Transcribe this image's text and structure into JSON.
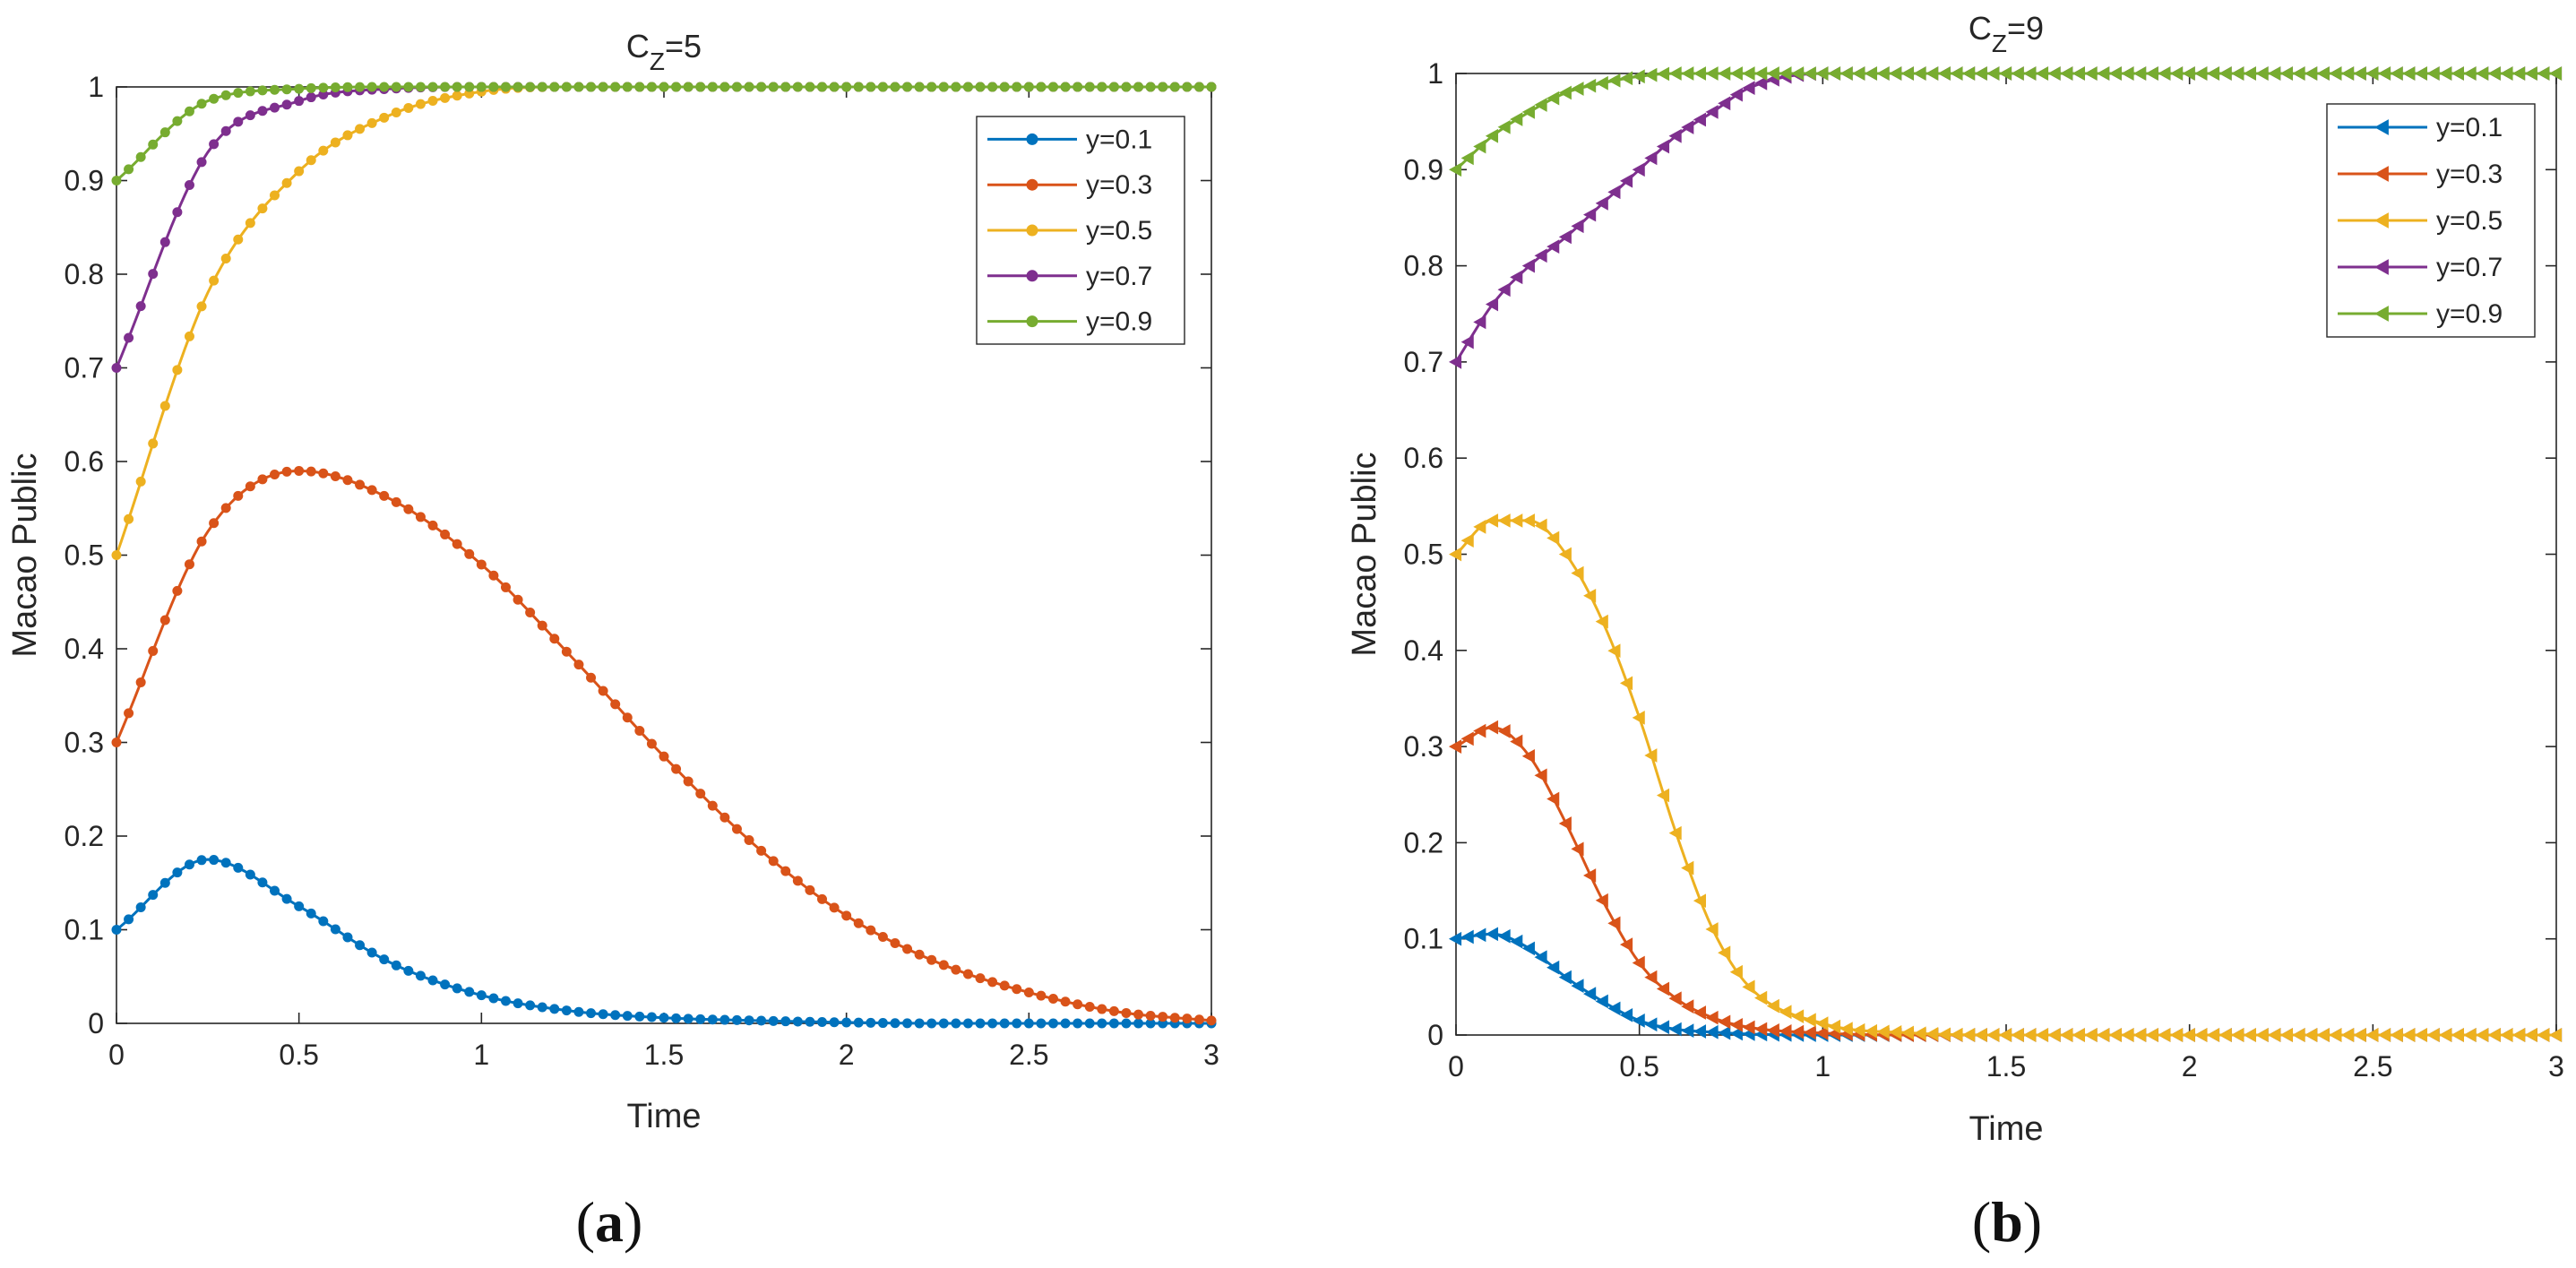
{
  "figure": {
    "panels": [
      {
        "title_main": "C",
        "title_sub": "Z",
        "title_rest": "=5",
        "caption_open": "(",
        "caption_letter": "a",
        "caption_close": ")",
        "marker": "circle"
      },
      {
        "title_main": "C",
        "title_sub": "Z",
        "title_rest": "=9",
        "caption_open": "(",
        "caption_letter": "b",
        "caption_close": ")",
        "marker": "triangle-left"
      }
    ]
  },
  "colors": {
    "series": [
      "#0072BD",
      "#D95319",
      "#EDB120",
      "#7E2F8E",
      "#77AC30"
    ],
    "axis": "#262626",
    "grid": "#262626",
    "background": "#ffffff"
  },
  "chart_data": [
    {
      "type": "line",
      "title": "CZ=5",
      "xlabel": "Time",
      "ylabel": "Macao Public",
      "xlim": [
        0,
        3
      ],
      "ylim": [
        0,
        1
      ],
      "xticks": [
        "0",
        "0.5",
        "1",
        "1.5",
        "2",
        "2.5",
        "3"
      ],
      "yticks": [
        "0",
        "0.1",
        "0.2",
        "0.3",
        "0.4",
        "0.5",
        "0.6",
        "0.7",
        "0.8",
        "0.9",
        "1"
      ],
      "grid": false,
      "legend_position": "top-right",
      "x": [
        0,
        0.25,
        0.5,
        0.75,
        1,
        1.25,
        1.5,
        1.75,
        2,
        2.25,
        2.5,
        2.75,
        3
      ],
      "series": [
        {
          "name": "y=0.1",
          "values": [
            0.1,
            0.175,
            0.125,
            0.065,
            0.03,
            0.013,
            0.006,
            0.003,
            0.001,
            0.0,
            0.0,
            0.0,
            0.0
          ]
        },
        {
          "name": "y=0.3",
          "values": [
            0.3,
            0.525,
            0.59,
            0.56,
            0.49,
            0.39,
            0.285,
            0.19,
            0.115,
            0.065,
            0.033,
            0.012,
            0.003
          ]
        },
        {
          "name": "y=0.5",
          "values": [
            0.5,
            0.78,
            0.91,
            0.97,
            0.995,
            1.0,
            1.0,
            1.0,
            1.0,
            1.0,
            1.0,
            1.0,
            1.0
          ]
        },
        {
          "name": "y=0.7",
          "values": [
            0.7,
            0.93,
            0.985,
            0.998,
            1.0,
            1.0,
            1.0,
            1.0,
            1.0,
            1.0,
            1.0,
            1.0,
            1.0
          ]
        },
        {
          "name": "y=0.9",
          "values": [
            0.9,
            0.985,
            0.998,
            1.0,
            1.0,
            1.0,
            1.0,
            1.0,
            1.0,
            1.0,
            1.0,
            1.0,
            1.0
          ]
        }
      ]
    },
    {
      "type": "line",
      "title": "CZ=9",
      "xlabel": "Time",
      "ylabel": "Macao Public",
      "xlim": [
        0,
        3
      ],
      "ylim": [
        0,
        1
      ],
      "xticks": [
        "0",
        "0.5",
        "1",
        "1.5",
        "2",
        "2.5",
        "3"
      ],
      "yticks": [
        "0",
        "0.1",
        "0.2",
        "0.3",
        "0.4",
        "0.5",
        "0.6",
        "0.7",
        "0.8",
        "0.9",
        "1"
      ],
      "grid": false,
      "legend_position": "top-right",
      "x": [
        0,
        0.1,
        0.2,
        0.3,
        0.4,
        0.5,
        0.6,
        0.7,
        0.8,
        1.0,
        1.25,
        1.5,
        1.75,
        2.0,
        2.5,
        3.0
      ],
      "series": [
        {
          "name": "y=0.1",
          "values": [
            0.1,
            0.105,
            0.09,
            0.06,
            0.035,
            0.015,
            0.006,
            0.003,
            0.001,
            0.0,
            0.0,
            0.0,
            0.0,
            0.0,
            0.0,
            0.0
          ]
        },
        {
          "name": "y=0.3",
          "values": [
            0.3,
            0.32,
            0.29,
            0.22,
            0.14,
            0.075,
            0.038,
            0.018,
            0.008,
            0.002,
            0.0,
            0.0,
            0.0,
            0.0,
            0.0,
            0.0
          ]
        },
        {
          "name": "y=0.5",
          "values": [
            0.5,
            0.535,
            0.535,
            0.5,
            0.43,
            0.33,
            0.21,
            0.11,
            0.05,
            0.012,
            0.002,
            0.0,
            0.0,
            0.0,
            0.0,
            0.0
          ]
        },
        {
          "name": "y=0.7",
          "values": [
            0.7,
            0.76,
            0.8,
            0.83,
            0.865,
            0.9,
            0.935,
            0.96,
            0.985,
            1.0,
            1.0,
            1.0,
            1.0,
            1.0,
            1.0,
            1.0
          ]
        },
        {
          "name": "y=0.9",
          "values": [
            0.9,
            0.935,
            0.96,
            0.98,
            0.99,
            0.997,
            1.0,
            1.0,
            1.0,
            1.0,
            1.0,
            1.0,
            1.0,
            1.0,
            1.0,
            1.0
          ]
        }
      ]
    }
  ]
}
